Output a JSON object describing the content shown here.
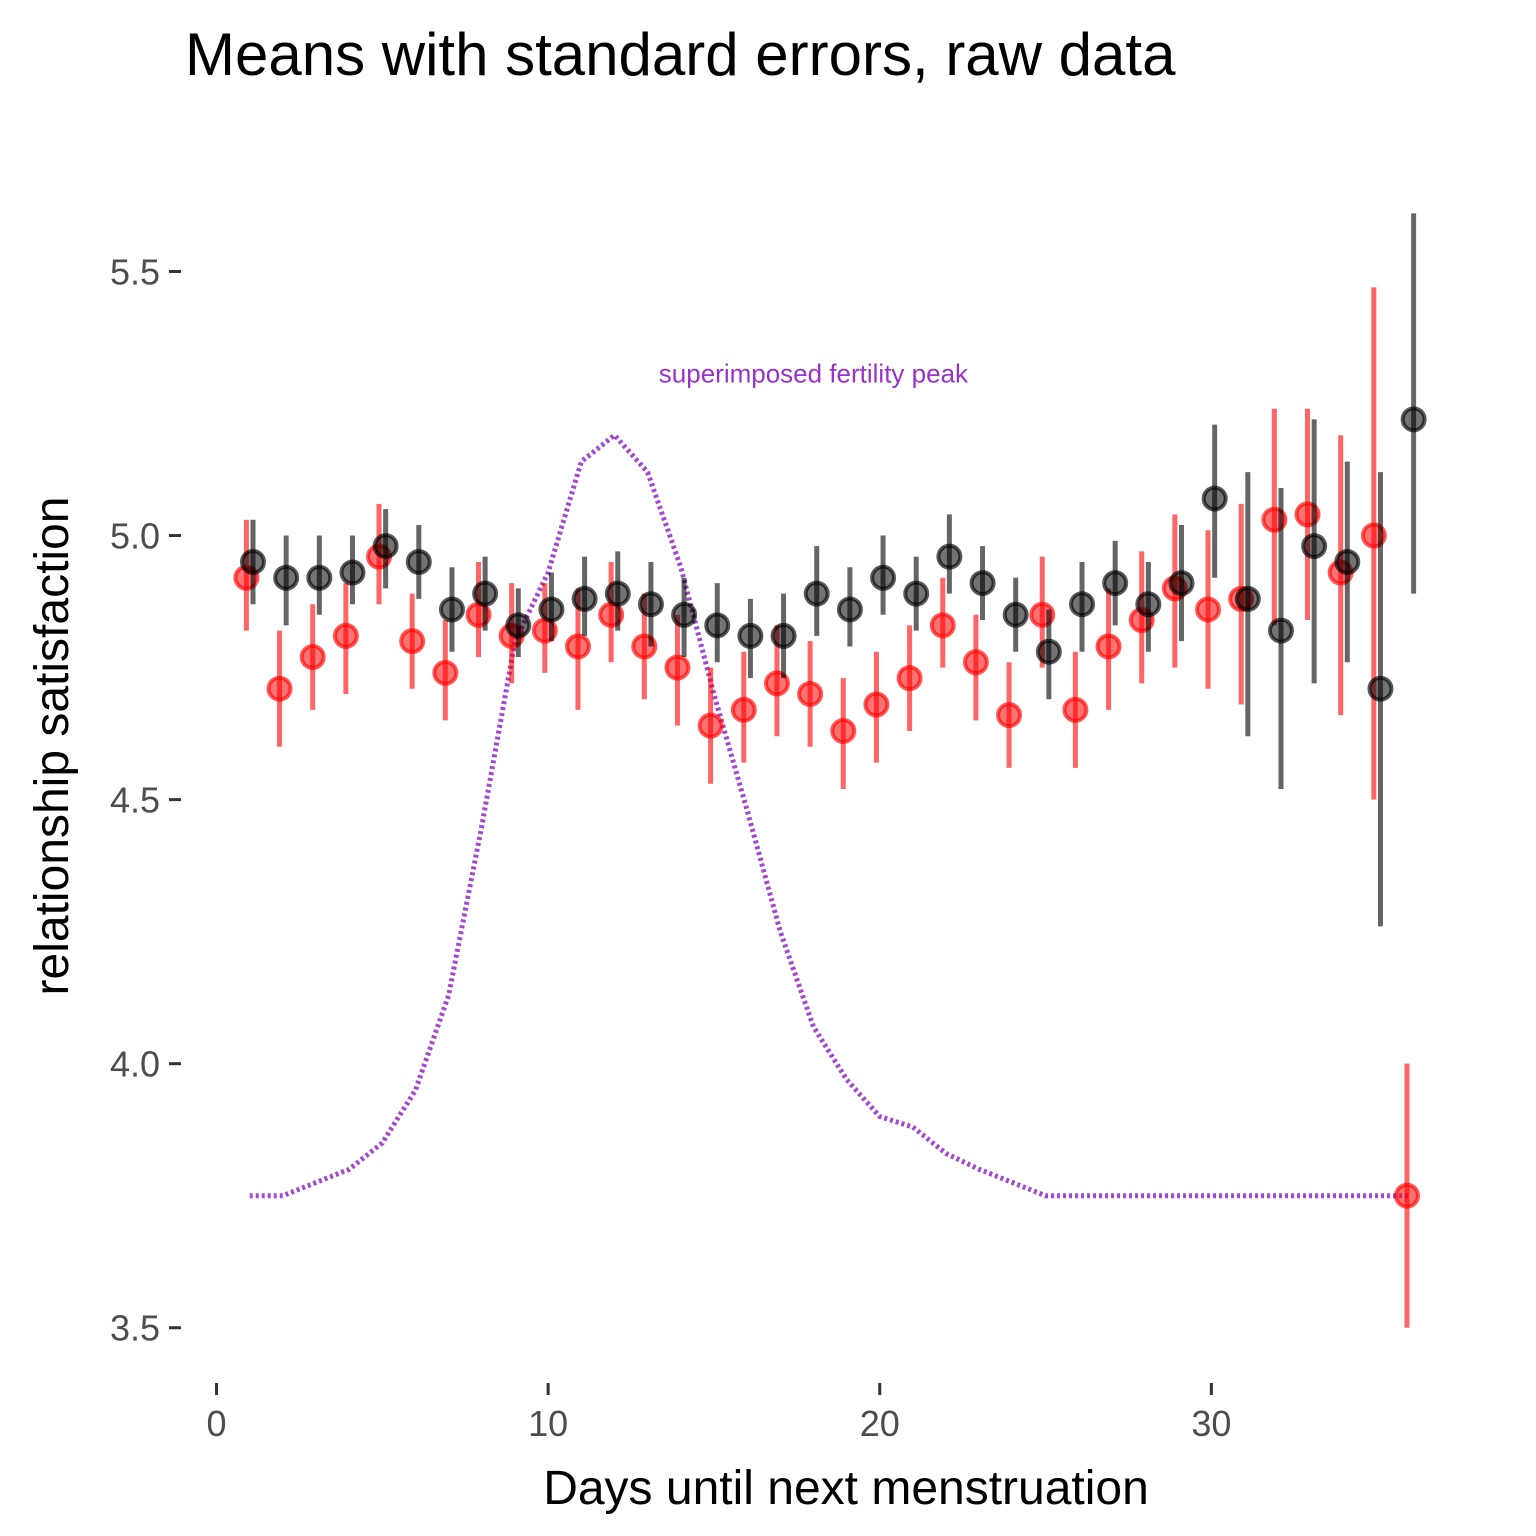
{
  "chart_data": {
    "type": "scatter",
    "title": "Means with standard errors, raw data",
    "xlabel": "Days until next menstruation",
    "ylabel": "relationship satisfaction",
    "xlim": [
      -0.8,
      37.8
    ],
    "ylim": [
      3.42,
      5.73
    ],
    "x_ticks": [
      0,
      10,
      20,
      30
    ],
    "y_ticks": [
      3.5,
      4.0,
      4.5,
      5.0,
      5.5
    ],
    "y_tick_labels": [
      "3.5",
      "4.0",
      "4.5",
      "5.0",
      "5.5"
    ],
    "grid": false,
    "legend": "none",
    "series": [
      {
        "color": "#ff0000",
        "points": [
          {
            "x": 0.9,
            "y": 4.92,
            "lo": 4.82,
            "hi": 5.03
          },
          {
            "x": 1.9,
            "y": 4.71,
            "lo": 4.6,
            "hi": 4.82
          },
          {
            "x": 2.9,
            "y": 4.77,
            "lo": 4.67,
            "hi": 4.87
          },
          {
            "x": 3.9,
            "y": 4.81,
            "lo": 4.7,
            "hi": 4.91
          },
          {
            "x": 4.9,
            "y": 4.96,
            "lo": 4.87,
            "hi": 5.06
          },
          {
            "x": 5.9,
            "y": 4.8,
            "lo": 4.71,
            "hi": 4.89
          },
          {
            "x": 6.9,
            "y": 4.74,
            "lo": 4.65,
            "hi": 4.84
          },
          {
            "x": 7.9,
            "y": 4.85,
            "lo": 4.77,
            "hi": 4.95
          },
          {
            "x": 8.9,
            "y": 4.81,
            "lo": 4.72,
            "hi": 4.91
          },
          {
            "x": 9.9,
            "y": 4.82,
            "lo": 4.74,
            "hi": 4.91
          },
          {
            "x": 10.9,
            "y": 4.79,
            "lo": 4.67,
            "hi": 4.9
          },
          {
            "x": 11.9,
            "y": 4.85,
            "lo": 4.76,
            "hi": 4.95
          },
          {
            "x": 12.9,
            "y": 4.79,
            "lo": 4.69,
            "hi": 4.89
          },
          {
            "x": 13.9,
            "y": 4.75,
            "lo": 4.64,
            "hi": 4.85
          },
          {
            "x": 14.9,
            "y": 4.64,
            "lo": 4.53,
            "hi": 4.75
          },
          {
            "x": 15.9,
            "y": 4.67,
            "lo": 4.57,
            "hi": 4.78
          },
          {
            "x": 16.9,
            "y": 4.72,
            "lo": 4.62,
            "hi": 4.83
          },
          {
            "x": 17.9,
            "y": 4.7,
            "lo": 4.6,
            "hi": 4.8
          },
          {
            "x": 18.9,
            "y": 4.63,
            "lo": 4.52,
            "hi": 4.73
          },
          {
            "x": 19.9,
            "y": 4.68,
            "lo": 4.57,
            "hi": 4.78
          },
          {
            "x": 20.9,
            "y": 4.73,
            "lo": 4.63,
            "hi": 4.83
          },
          {
            "x": 21.9,
            "y": 4.83,
            "lo": 4.75,
            "hi": 4.92
          },
          {
            "x": 22.9,
            "y": 4.76,
            "lo": 4.65,
            "hi": 4.85
          },
          {
            "x": 23.9,
            "y": 4.66,
            "lo": 4.56,
            "hi": 4.76
          },
          {
            "x": 24.9,
            "y": 4.85,
            "lo": 4.75,
            "hi": 4.96
          },
          {
            "x": 25.9,
            "y": 4.67,
            "lo": 4.56,
            "hi": 4.78
          },
          {
            "x": 26.9,
            "y": 4.79,
            "lo": 4.67,
            "hi": 4.9
          },
          {
            "x": 27.9,
            "y": 4.84,
            "lo": 4.72,
            "hi": 4.97
          },
          {
            "x": 28.9,
            "y": 4.9,
            "lo": 4.75,
            "hi": 5.04
          },
          {
            "x": 29.9,
            "y": 4.86,
            "lo": 4.71,
            "hi": 5.01
          },
          {
            "x": 30.9,
            "y": 4.88,
            "lo": 4.68,
            "hi": 5.06
          },
          {
            "x": 31.9,
            "y": 5.03,
            "lo": 4.83,
            "hi": 5.24
          },
          {
            "x": 32.9,
            "y": 5.04,
            "lo": 4.84,
            "hi": 5.24
          },
          {
            "x": 33.9,
            "y": 4.93,
            "lo": 4.66,
            "hi": 5.19
          },
          {
            "x": 34.9,
            "y": 5.0,
            "lo": 4.5,
            "hi": 5.47
          },
          {
            "x": 35.9,
            "y": 3.75,
            "lo": 3.5,
            "hi": 4.0
          }
        ]
      },
      {
        "color": "#000000",
        "points": [
          {
            "x": 1.1,
            "y": 4.95,
            "lo": 4.87,
            "hi": 5.03
          },
          {
            "x": 2.1,
            "y": 4.92,
            "lo": 4.83,
            "hi": 5.0
          },
          {
            "x": 3.1,
            "y": 4.92,
            "lo": 4.85,
            "hi": 5.0
          },
          {
            "x": 4.1,
            "y": 4.93,
            "lo": 4.87,
            "hi": 5.0
          },
          {
            "x": 5.1,
            "y": 4.98,
            "lo": 4.9,
            "hi": 5.05
          },
          {
            "x": 6.1,
            "y": 4.95,
            "lo": 4.88,
            "hi": 5.02
          },
          {
            "x": 7.1,
            "y": 4.86,
            "lo": 4.78,
            "hi": 4.94
          },
          {
            "x": 8.1,
            "y": 4.89,
            "lo": 4.82,
            "hi": 4.96
          },
          {
            "x": 9.1,
            "y": 4.83,
            "lo": 4.77,
            "hi": 4.9
          },
          {
            "x": 10.1,
            "y": 4.86,
            "lo": 4.8,
            "hi": 4.93
          },
          {
            "x": 11.1,
            "y": 4.88,
            "lo": 4.81,
            "hi": 4.96
          },
          {
            "x": 12.1,
            "y": 4.89,
            "lo": 4.82,
            "hi": 4.97
          },
          {
            "x": 13.1,
            "y": 4.87,
            "lo": 4.79,
            "hi": 4.95
          },
          {
            "x": 14.1,
            "y": 4.85,
            "lo": 4.77,
            "hi": 4.92
          },
          {
            "x": 15.1,
            "y": 4.83,
            "lo": 4.76,
            "hi": 4.91
          },
          {
            "x": 16.1,
            "y": 4.81,
            "lo": 4.73,
            "hi": 4.88
          },
          {
            "x": 17.1,
            "y": 4.81,
            "lo": 4.73,
            "hi": 4.89
          },
          {
            "x": 18.1,
            "y": 4.89,
            "lo": 4.81,
            "hi": 4.98
          },
          {
            "x": 19.1,
            "y": 4.86,
            "lo": 4.79,
            "hi": 4.94
          },
          {
            "x": 20.1,
            "y": 4.92,
            "lo": 4.85,
            "hi": 5.0
          },
          {
            "x": 21.1,
            "y": 4.89,
            "lo": 4.82,
            "hi": 4.96
          },
          {
            "x": 22.1,
            "y": 4.96,
            "lo": 4.89,
            "hi": 5.04
          },
          {
            "x": 23.1,
            "y": 4.91,
            "lo": 4.84,
            "hi": 4.98
          },
          {
            "x": 24.1,
            "y": 4.85,
            "lo": 4.78,
            "hi": 4.92
          },
          {
            "x": 25.1,
            "y": 4.78,
            "lo": 4.69,
            "hi": 4.86
          },
          {
            "x": 26.1,
            "y": 4.87,
            "lo": 4.78,
            "hi": 4.95
          },
          {
            "x": 27.1,
            "y": 4.91,
            "lo": 4.83,
            "hi": 4.99
          },
          {
            "x": 28.1,
            "y": 4.87,
            "lo": 4.78,
            "hi": 4.95
          },
          {
            "x": 29.1,
            "y": 4.91,
            "lo": 4.8,
            "hi": 5.02
          },
          {
            "x": 30.1,
            "y": 5.07,
            "lo": 4.92,
            "hi": 5.21
          },
          {
            "x": 31.1,
            "y": 4.88,
            "lo": 4.62,
            "hi": 5.12
          },
          {
            "x": 32.1,
            "y": 4.82,
            "lo": 4.52,
            "hi": 5.09
          },
          {
            "x": 33.1,
            "y": 4.98,
            "lo": 4.72,
            "hi": 5.22
          },
          {
            "x": 34.1,
            "y": 4.95,
            "lo": 4.76,
            "hi": 5.14
          },
          {
            "x": 35.1,
            "y": 4.71,
            "lo": 4.26,
            "hi": 5.12
          },
          {
            "x": 36.1,
            "y": 5.22,
            "lo": 4.89,
            "hi": 5.61
          }
        ]
      }
    ],
    "fertility_curve": {
      "color": "#9932cc",
      "style": "dotted",
      "x": [
        1,
        2,
        3,
        4,
        5,
        6,
        7,
        8,
        9,
        10,
        11,
        12,
        13,
        14,
        15,
        16,
        17,
        18,
        19,
        20,
        21,
        22,
        23,
        24,
        25,
        26,
        27,
        28,
        29,
        30,
        31,
        32,
        33,
        34,
        35,
        36
      ],
      "y": [
        3.75,
        3.75,
        3.775,
        3.8,
        3.85,
        3.95,
        4.13,
        4.45,
        4.8,
        4.93,
        5.14,
        5.19,
        5.12,
        4.94,
        4.7,
        4.48,
        4.25,
        4.07,
        3.97,
        3.9,
        3.88,
        3.83,
        3.8,
        3.775,
        3.75,
        3.75,
        3.75,
        3.75,
        3.75,
        3.75,
        3.75,
        3.75,
        3.75,
        3.75,
        3.75,
        3.75
      ],
      "annotation": {
        "text": "superimposed fertility peak",
        "x": 18,
        "y": 5.29
      }
    }
  }
}
